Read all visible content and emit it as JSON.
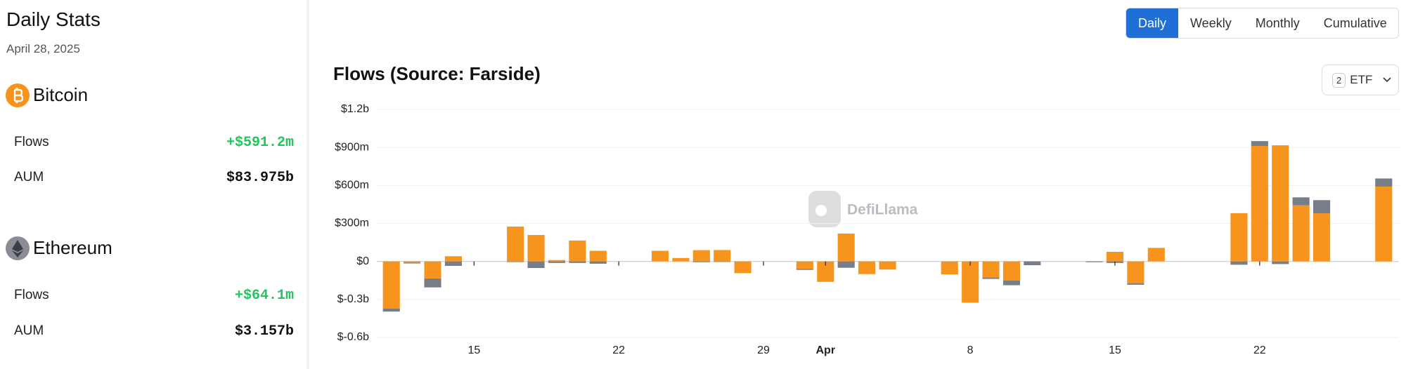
{
  "sidebar": {
    "title": "Daily Stats",
    "date": "April 28, 2025",
    "assets": [
      {
        "rows": [
          {
            "label": "Flows",
            "value": "+$591.2m"
          },
          {
            "label": "AUM",
            "value": "$83.975b"
          }
        ]
      },
      {
        "rows": [
          {
            "label": "Flows",
            "value": "+$64.1m"
          },
          {
            "label": "AUM",
            "value": "$3.157b"
          }
        ]
      }
    ]
  },
  "tabs": [
    "Daily",
    "Weekly",
    "Monthly",
    "Cumulative"
  ],
  "etf_filter": {
    "count": 2,
    "label": "ETF"
  },
  "watermark": "DefiLlama",
  "chart_data": {
    "type": "stacked_bar",
    "title": "Flows (Source: Farside)",
    "categories": [
      null,
      null,
      null,
      null,
      "15",
      null,
      null,
      null,
      null,
      null,
      null,
      "22",
      null,
      null,
      null,
      null,
      null,
      null,
      "29",
      null,
      null,
      "Apr",
      null,
      null,
      null,
      null,
      null,
      null,
      "8",
      null,
      null,
      null,
      null,
      null,
      null,
      "15",
      null,
      null,
      null,
      null,
      null,
      null,
      "22",
      null,
      null,
      null,
      null,
      null,
      null
    ],
    "series": [
      {
        "name": "Bitcoin",
        "color": "#f7941d",
        "values": [
          -371,
          -10,
          -135,
          41,
          null,
          null,
          275,
          209,
          11,
          165,
          84,
          null,
          null,
          84,
          27,
          89,
          90,
          -93,
          null,
          null,
          -60,
          -157,
          220,
          -100,
          -64,
          null,
          null,
          -103,
          -326,
          -127,
          -150,
          0,
          null,
          null,
          1,
          76,
          -172,
          107,
          null,
          null,
          null,
          381,
          912,
          917,
          443,
          380,
          null,
          null,
          591
        ]
      },
      {
        "name": "Ethereum",
        "color": "#787d8a",
        "values": [
          -25,
          -6,
          -70,
          -35,
          null,
          null,
          -5,
          -52,
          -12,
          -12,
          -18,
          null,
          null,
          0,
          0,
          -6,
          -4,
          0,
          null,
          null,
          -7,
          -3,
          -50,
          0,
          0,
          null,
          null,
          0,
          0,
          -11,
          -38,
          -30,
          null,
          null,
          -6,
          -12,
          -12,
          0,
          null,
          null,
          null,
          -26,
          38,
          -21,
          63,
          104,
          null,
          null,
          64
        ]
      }
    ],
    "ylim": [
      -600,
      1200
    ],
    "yticks": [
      {
        "value": -600,
        "label": "$-0.6b"
      },
      {
        "value": -300,
        "label": "$-0.3b"
      },
      {
        "value": 0,
        "label": "$0"
      },
      {
        "value": 300,
        "label": "$300m"
      },
      {
        "value": 600,
        "label": "$600m"
      },
      {
        "value": 900,
        "label": "$900m"
      },
      {
        "value": 1200,
        "label": "$1.2b"
      }
    ],
    "grid": true
  }
}
